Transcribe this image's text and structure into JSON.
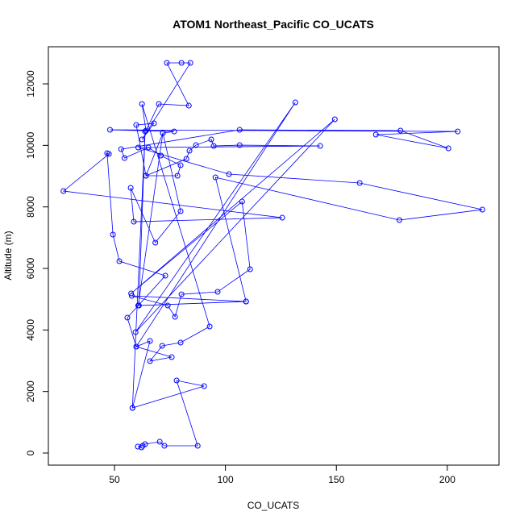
{
  "chart_data": {
    "type": "line",
    "title": "ATOM1 Northeast_Pacific CO_UCATS",
    "x_label": "CO_UCATS",
    "y_label": "Altitude (m)",
    "x": [
      62.2,
      60.5,
      62.7,
      63.8,
      70.4,
      72.5,
      87.5,
      78,
      90.4,
      58.1,
      66,
      59.8,
      55.8,
      72.9,
      52.2,
      49.3,
      46.7,
      47.5,
      27,
      125.6,
      58.7,
      57.3,
      68.4,
      79.8,
      71.8,
      60.7,
      109.3,
      57.8,
      74,
      77.3,
      80.2,
      96.5,
      111.1,
      107.5,
      57.5,
      149.3,
      59.5,
      131.5,
      59.8,
      75.8,
      66,
      71.5,
      79.8,
      92.9,
      62.4,
      64.2,
      70,
      83.5,
      73.6,
      80.2,
      84.2,
      62.4,
      67.8,
      59.8,
      64.2,
      71.8,
      76.9,
      48,
      204.7,
      167.8,
      200.5,
      178.9,
      106.4,
      53,
      54.5,
      65.3,
      70.9,
      79.8,
      78.4,
      64.2,
      82.4,
      83.8,
      86.7,
      93.6,
      94.7,
      106.4,
      142.7,
      60.7,
      101.6,
      160.5,
      215.8,
      178.4,
      95.5,
      109.3,
      61,
      63.8,
      58.1
    ],
    "series": [
      {
        "name": "CO_UCATS",
        "color": "#0000ff",
        "values": [
          183,
          210,
          236,
          288,
          367,
          236,
          236,
          2358,
          2175,
          1467,
          3642,
          3458,
          4401,
          5764,
          6236,
          7100,
          9746,
          9720,
          8515,
          7650,
          7519,
          8620,
          6838,
          7860,
          10401,
          4794,
          4925,
          5110,
          4794,
          4428,
          5160,
          5240,
          5974,
          8174,
          5188,
          10847,
          3930,
          11397,
          3458,
          3118,
          2987,
          3484,
          3589,
          4113,
          11345,
          10480,
          11345,
          11292,
          12681,
          12681,
          12681,
          10192,
          10716,
          10663,
          9013,
          10401,
          10453,
          10506,
          10453,
          10349,
          9904,
          10480,
          10506,
          9877,
          9589,
          9930,
          9668,
          9353,
          9013,
          9013,
          9563,
          9825,
          10008,
          10192,
          9982,
          10008,
          9982,
          9930,
          9065,
          8777,
          7912,
          7572,
          8960,
          4925,
          4794,
          10453,
          1467
        ]
      }
    ],
    "xlim": [
      20.2,
      223.3
    ],
    "ylim": [
      -393,
      13206
    ],
    "xticks": [
      50,
      100,
      150,
      200
    ],
    "yticks": [
      0,
      2000,
      4000,
      6000,
      8000,
      10000,
      12000
    ]
  }
}
